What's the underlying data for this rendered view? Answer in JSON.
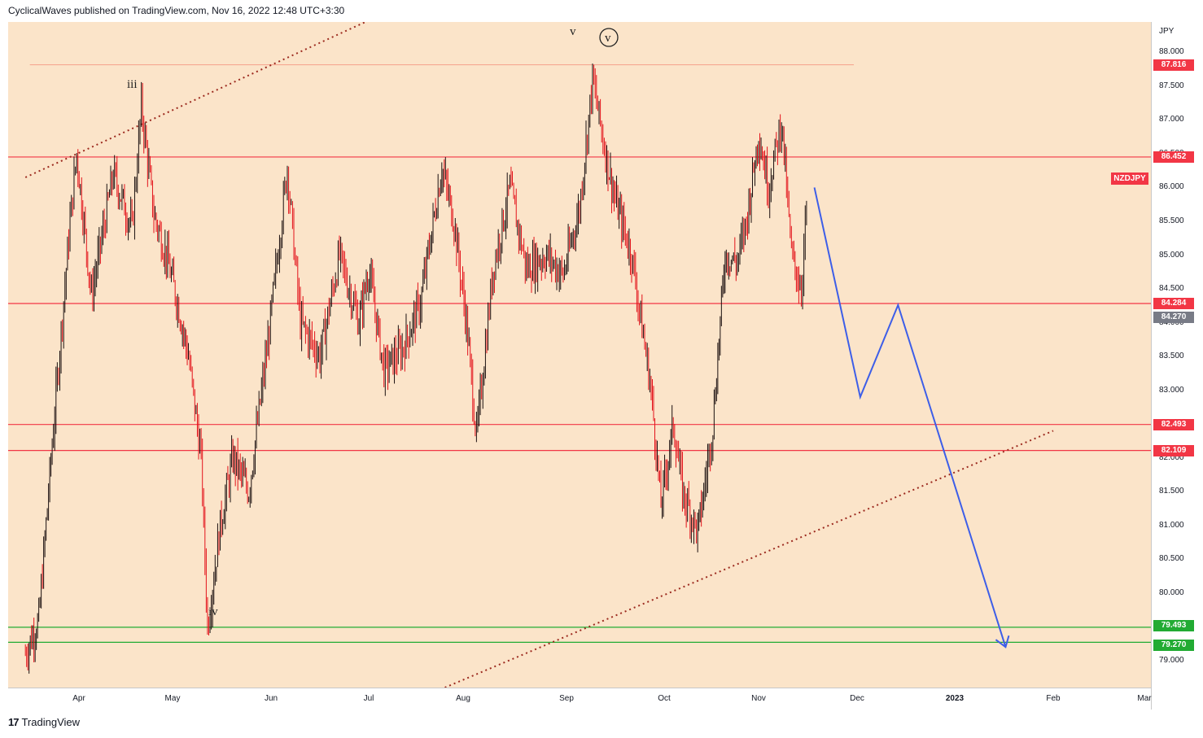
{
  "header": {
    "text": "CyclicalWaves published on TradingView.com, Nov 16, 2022 12:48 UTC+3:30"
  },
  "footer": {
    "logo_text": "TradingView",
    "logo_mark": "17"
  },
  "symbol": "NZDJPY",
  "chart_data": {
    "type": "candlestick",
    "currency_unit": "JPY",
    "y_ticks": [
      "88.000",
      "87.500",
      "87.000",
      "86.500",
      "86.000",
      "85.500",
      "85.000",
      "84.500",
      "84.000",
      "83.500",
      "83.000",
      "82.500",
      "82.000",
      "81.500",
      "81.000",
      "80.500",
      "80.000",
      "79.500",
      "79.000"
    ],
    "x_ticks": [
      "Apr",
      "May",
      "Jun",
      "Jul",
      "Aug",
      "Sep",
      "Oct",
      "Nov",
      "Dec",
      "2023",
      "Feb",
      "Mar"
    ],
    "ylim": [
      78.6,
      88.45
    ],
    "horizontal_levels": [
      {
        "value": 86.452,
        "label": "86.452",
        "color": "#f23645"
      },
      {
        "value": 84.284,
        "label": "84.284",
        "color": "#f23645"
      },
      {
        "value": 82.493,
        "label": "82.493",
        "color": "#f23645"
      },
      {
        "value": 82.109,
        "label": "82.109",
        "color": "#f23645"
      },
      {
        "value": 79.493,
        "label": "79.493",
        "color": "#22ab33"
      },
      {
        "value": 79.27,
        "label": "79.270",
        "color": "#22ab33"
      }
    ],
    "price_tags": [
      {
        "value": 87.816,
        "label": "87.816",
        "color": "#f23645"
      },
      {
        "value": 84.27,
        "label": "84.270",
        "color": "#787b86"
      }
    ],
    "wave_labels": [
      "iii",
      "iv",
      "v",
      "v"
    ],
    "price_path": [
      [
        "Mar 8",
        79.1
      ],
      [
        "Mar 14",
        79.6
      ],
      [
        "Mar 20",
        82.2
      ],
      [
        "Mar 28",
        85.5
      ],
      [
        "Mar 31",
        86.5
      ],
      [
        "Apr 5",
        84.4
      ],
      [
        "Apr 12",
        86.2
      ],
      [
        "Apr 18",
        85.4
      ],
      [
        "Apr 21",
        87.2
      ],
      [
        "Apr 25",
        85.6
      ],
      [
        "Apr 29",
        85.0
      ],
      [
        "May 3",
        84.2
      ],
      [
        "May 6",
        83.5
      ],
      [
        "May 10",
        82.0
      ],
      [
        "May 12",
        79.5
      ],
      [
        "May 16",
        81.0
      ],
      [
        "May 20",
        82.0
      ],
      [
        "May 25",
        81.5
      ],
      [
        "May 31",
        83.7
      ],
      [
        "Jun 6",
        86.3
      ],
      [
        "Jun 10",
        84.0
      ],
      [
        "Jun 16",
        83.5
      ],
      [
        "Jun 22",
        85.0
      ],
      [
        "Jun 28",
        84.0
      ],
      [
        "Jul 1",
        84.8
      ],
      [
        "Jul 6",
        83.3
      ],
      [
        "Jul 12",
        83.6
      ],
      [
        "Jul 18",
        84.3
      ],
      [
        "Jul 25",
        86.3
      ],
      [
        "Jul 29",
        85.5
      ],
      [
        "Aug 2",
        84.0
      ],
      [
        "Aug 5",
        82.3
      ],
      [
        "Aug 10",
        84.8
      ],
      [
        "Aug 15",
        86.0
      ],
      [
        "Aug 20",
        84.8
      ],
      [
        "Aug 26",
        85.0
      ],
      [
        "Aug 31",
        84.7
      ],
      [
        "Sep 5",
        85.7
      ],
      [
        "Sep 9",
        87.6
      ],
      [
        "Sep 13",
        86.5
      ],
      [
        "Sep 16",
        85.8
      ],
      [
        "Sep 21",
        85.0
      ],
      [
        "Sep 27",
        83.0
      ],
      [
        "Sep 30",
        81.3
      ],
      [
        "Oct 4",
        82.5
      ],
      [
        "Oct 7",
        81.5
      ],
      [
        "Oct 12",
        80.9
      ],
      [
        "Oct 14",
        81.5
      ],
      [
        "Oct 17",
        82.5
      ],
      [
        "Oct 21",
        85.0
      ],
      [
        "Oct 25",
        84.9
      ],
      [
        "Oct 28",
        85.5
      ],
      [
        "Nov 1",
        86.8
      ],
      [
        "Nov 4",
        86.0
      ],
      [
        "Nov 8",
        87.0
      ],
      [
        "Nov 11",
        85.0
      ],
      [
        "Nov 14",
        84.5
      ],
      [
        "Nov 16",
        86.0
      ]
    ],
    "projection": [
      [
        "Nov 18",
        86.0
      ],
      [
        "Dec 2",
        82.9
      ],
      [
        "Dec 14",
        84.26
      ],
      [
        "Jan 17",
        79.2
      ]
    ],
    "projection_arrowhead": [
      "Jan 17",
      79.2
    ],
    "channel_lines": [
      [
        [
          "Mar 8",
          86.15
        ],
        [
          "Jun 30",
          88.45
        ]
      ],
      [
        [
          "Jul 26",
          78.6
        ],
        [
          "Feb 1",
          82.4
        ]
      ]
    ],
    "shaded_zone": {
      "from": "Nov 30",
      "to": "Mar 10",
      "top": 87.816,
      "split": 84.284,
      "bottom": 78.6
    }
  }
}
